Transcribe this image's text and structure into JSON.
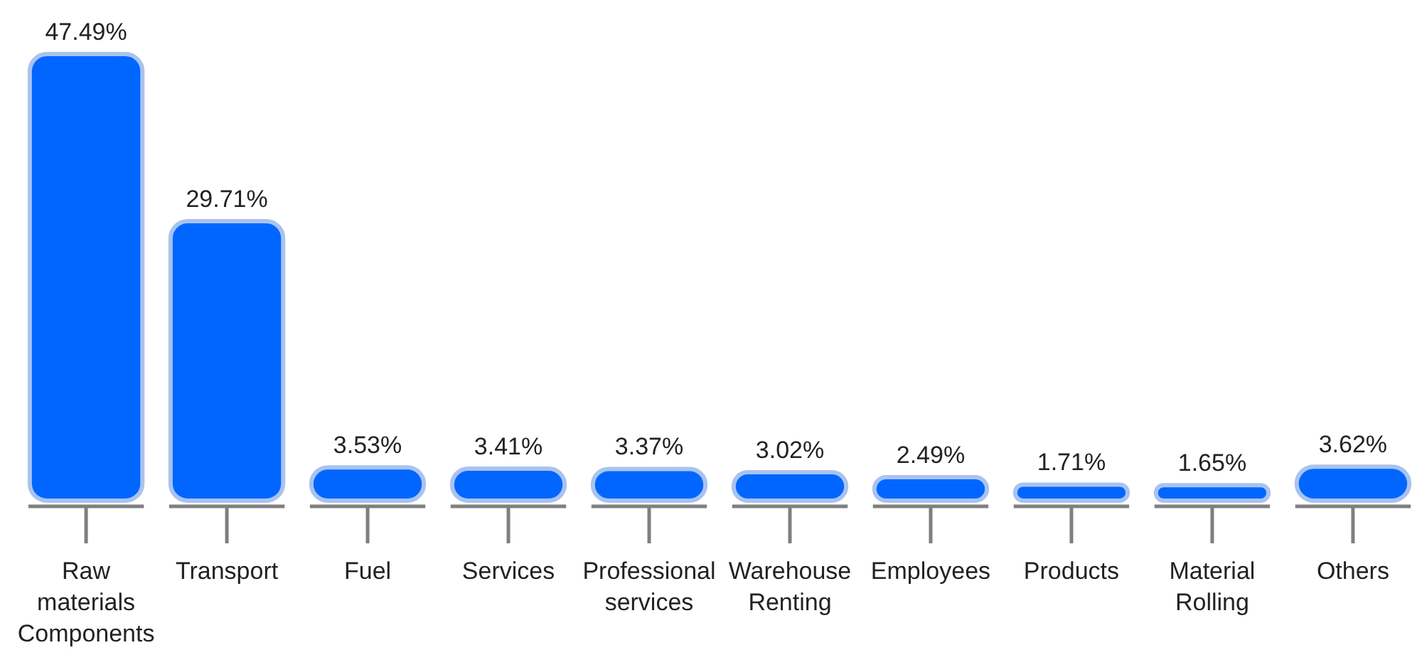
{
  "chart_data": {
    "type": "bar",
    "categories": [
      "Raw materials Components",
      "Transport",
      "Fuel",
      "Services",
      "Professional services",
      "Warehouse Renting",
      "Employees",
      "Products",
      "Material Rolling",
      "Others"
    ],
    "values": [
      47.49,
      29.71,
      3.53,
      3.41,
      3.37,
      3.02,
      2.49,
      1.71,
      1.65,
      3.62
    ],
    "value_labels": [
      "47.49%",
      "29.71%",
      "3.53%",
      "3.41%",
      "3.37%",
      "3.02%",
      "2.49%",
      "1.71%",
      "1.65%",
      "3.62%"
    ],
    "color": "#0066ff"
  }
}
